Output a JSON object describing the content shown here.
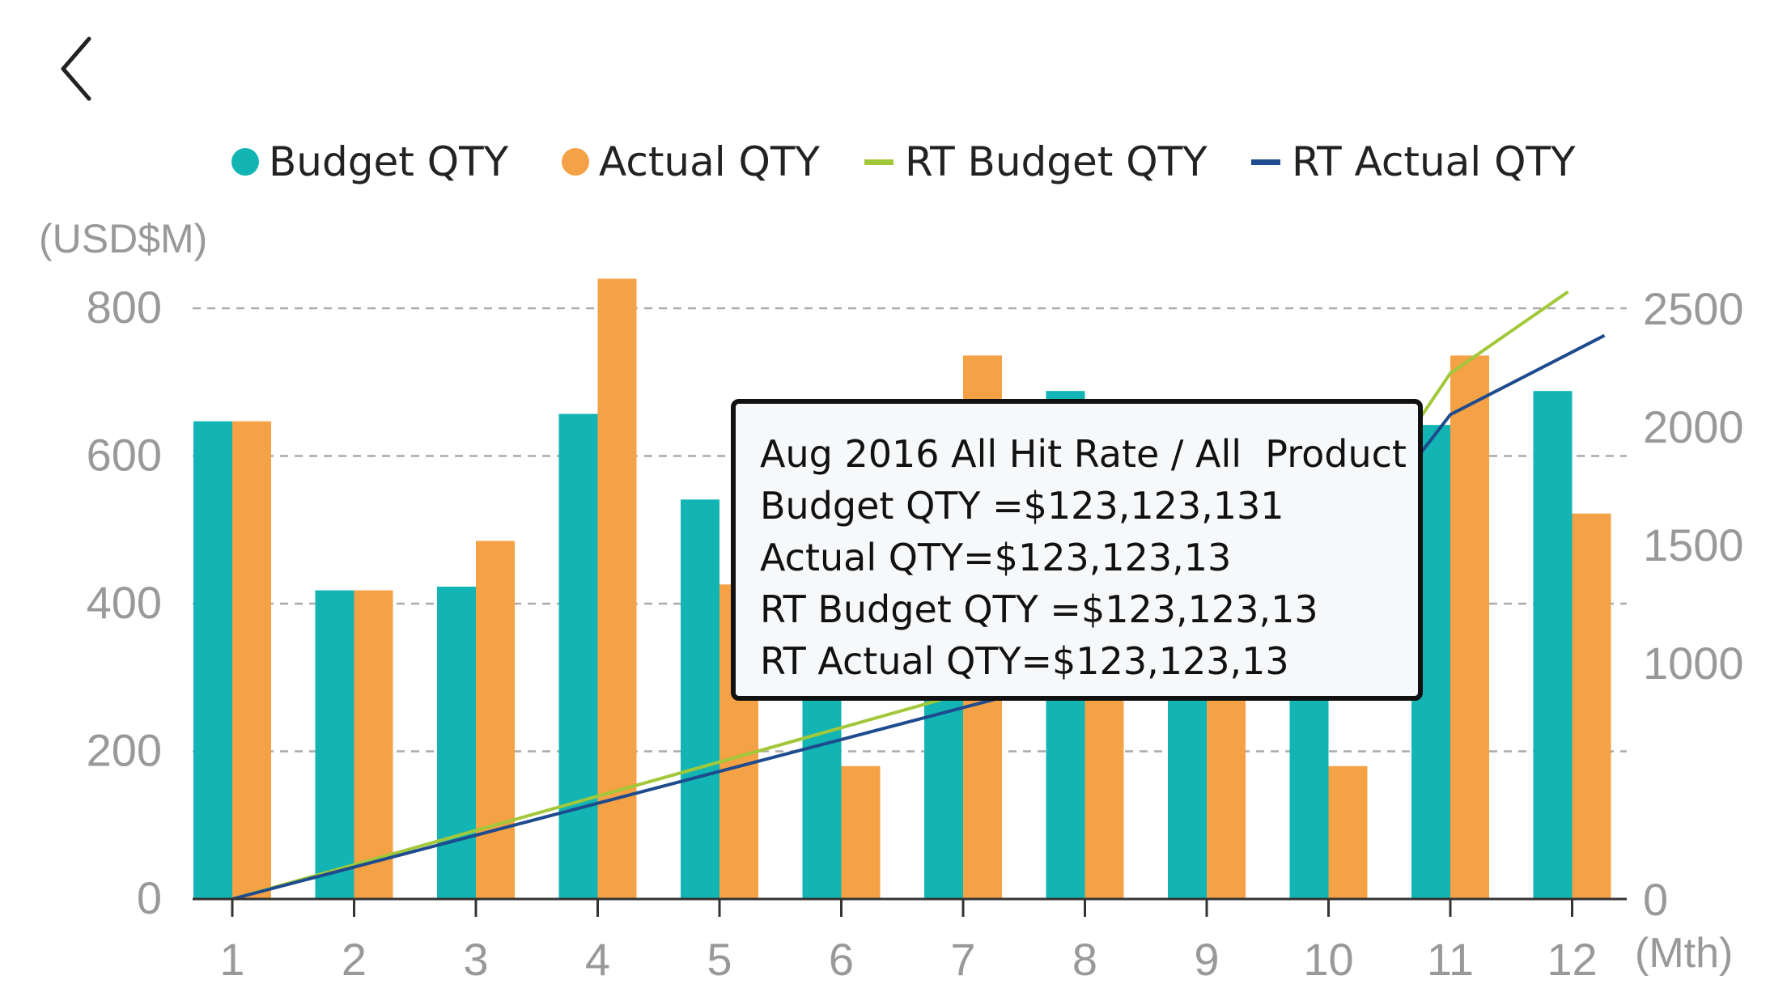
{
  "nav": {
    "back_icon": "chevron-left-icon"
  },
  "legend": [
    {
      "label": "Budget QTY",
      "color": "#12b5b3",
      "marker": "dot"
    },
    {
      "label": "Actual QTY",
      "color": "#f5a145",
      "marker": "dot"
    },
    {
      "label": "RT Budget QTY",
      "color": "#a2c83a",
      "marker": "line"
    },
    {
      "label": "RT Actual QTY",
      "color": "#1d4b8e",
      "marker": "line"
    }
  ],
  "chart_data": {
    "type": "bar",
    "left_axis_label": "(USD$M)",
    "x_unit_label": "(Mth)",
    "categories": [
      "1",
      "2",
      "3",
      "4",
      "5",
      "6",
      "7",
      "8",
      "9",
      "10",
      "11",
      "12"
    ],
    "ylim_left": [
      0,
      800
    ],
    "yticks_left": [
      0,
      200,
      400,
      600,
      800
    ],
    "ylim_right": [
      0,
      2500
    ],
    "yticks_right": [
      0,
      1000,
      1500,
      2000,
      2500
    ],
    "grid": true,
    "series": [
      {
        "name": "Budget QTY",
        "type": "bar",
        "axis": "left",
        "color": "#12b5b3",
        "values": [
          647,
          418,
          423,
          657,
          541,
          310,
          390,
          688,
          375,
          360,
          642,
          688
        ]
      },
      {
        "name": "Actual QTY",
        "type": "bar",
        "axis": "left",
        "color": "#f5a145",
        "values": [
          647,
          418,
          485,
          840,
          426,
          180,
          736,
          300,
          370,
          180,
          736,
          522
        ]
      },
      {
        "name": "RT Budget QTY",
        "type": "line",
        "axis": "right",
        "color": "#a2c83a",
        "values": [
          0,
          145,
          290,
          435,
          580,
          725,
          870,
          1015,
          1160,
          1460,
          2225,
          2570
        ]
      },
      {
        "name": "RT Actual QTY",
        "type": "line",
        "axis": "right",
        "color": "#1d4b8e",
        "values": [
          0,
          135,
          270,
          405,
          540,
          675,
          810,
          945,
          1080,
          1380,
          2050,
          2385
        ]
      }
    ]
  },
  "tooltip": {
    "lines": [
      "Aug 2016 All Hit Rate / All  Product",
      "Budget QTY =$123,123,131",
      "Actual QTY=$123,123,13",
      "RT Budget QTY =$123,123,13",
      "RT Actual QTY=$123,123,13"
    ],
    "category": "8"
  }
}
